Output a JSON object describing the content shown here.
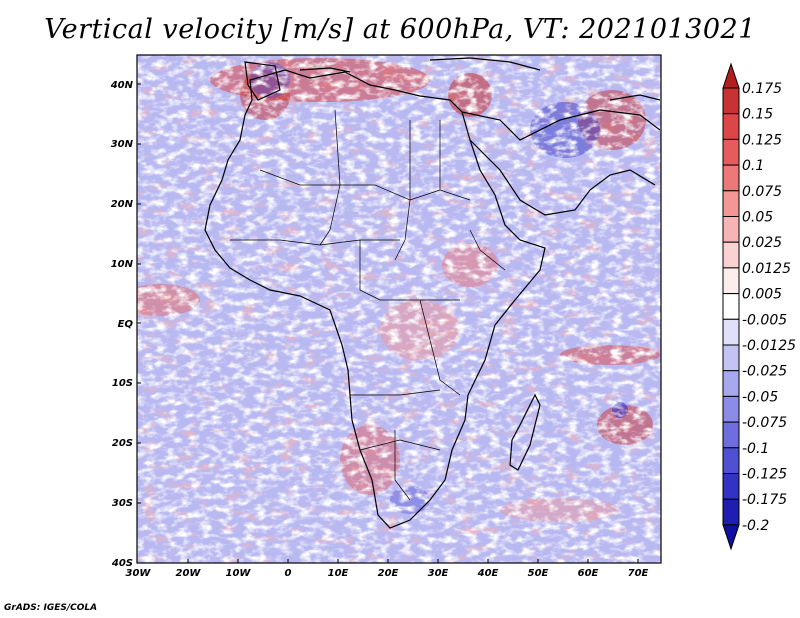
{
  "title": "Vertical velocity [m/s] at 600hPa, VT: 2021013021",
  "footer": "GrADS: IGES/COLA",
  "map": {
    "lat_labels": [
      "40N",
      "30N",
      "20N",
      "10N",
      "EQ",
      "10S",
      "20S",
      "30S",
      "40S"
    ],
    "lon_labels": [
      "30W",
      "20W",
      "10W",
      "0",
      "10E",
      "20E",
      "30E",
      "40E",
      "50E",
      "60E",
      "70E"
    ],
    "lat_range": [
      -40,
      45
    ],
    "lon_range": [
      -30,
      75
    ]
  },
  "colorbar": {
    "labels": [
      "0.175",
      "0.15",
      "0.125",
      "0.1",
      "0.075",
      "0.05",
      "0.025",
      "0.0125",
      "0.005",
      "-0.005",
      "-0.0125",
      "-0.025",
      "-0.05",
      "-0.075",
      "-0.1",
      "-0.125",
      "-0.175",
      "-0.2"
    ],
    "colors": [
      "#b41e1e",
      "#c83232",
      "#dc4646",
      "#e65c5c",
      "#ec7878",
      "#f29696",
      "#f6b4b4",
      "#fad2d2",
      "#fdeeee",
      "#ffffff",
      "#e0e0fa",
      "#c4c4f4",
      "#a8a8ee",
      "#8c8ce8",
      "#6e6ede",
      "#5050d2",
      "#3232c4",
      "#1e1eb0",
      "#1010a0"
    ]
  }
}
